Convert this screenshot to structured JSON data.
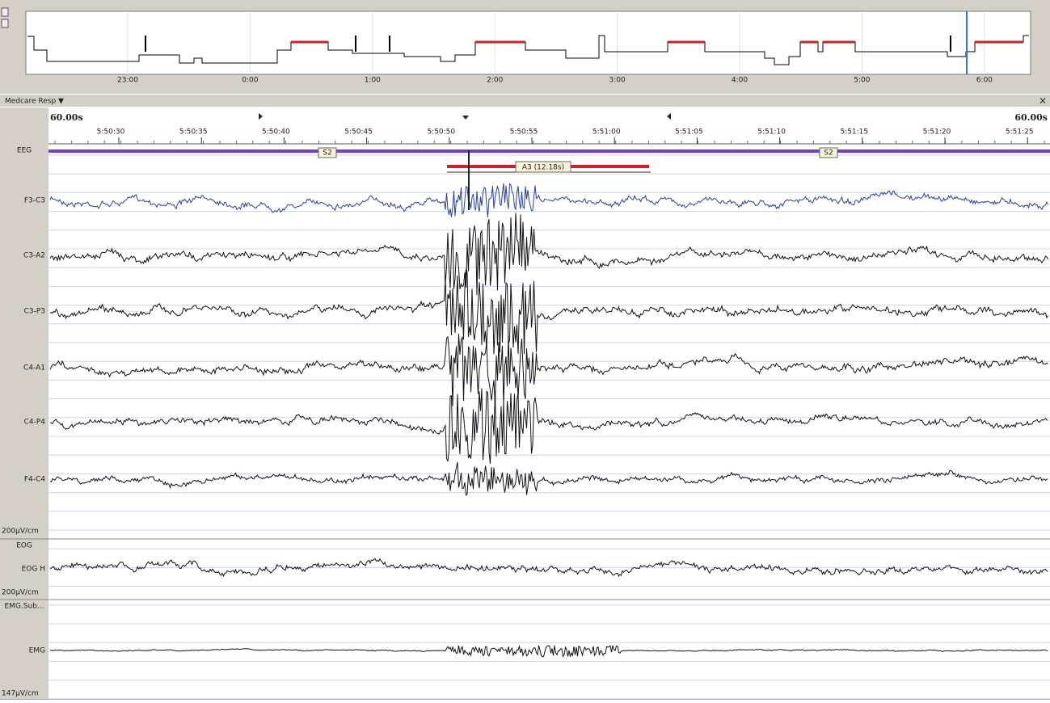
{
  "hypnogram": {
    "hour_labels": [
      "23:00",
      "0:00",
      "1:00",
      "2:00",
      "3:00",
      "4:00",
      "5:00",
      "6:00"
    ]
  },
  "toolbar": {
    "title": "Medcare Resp ▼",
    "close": "×"
  },
  "ruler": {
    "left": "60.00s",
    "right": "60.00s",
    "times": [
      "5:50:30",
      "5:50:35",
      "5:50:40",
      "5:50:45",
      "5:50:50",
      "5:50:55",
      "5:51:00",
      "5:51:05",
      "5:51:10",
      "5:51:15",
      "5:51:20",
      "5:51:25"
    ]
  },
  "groups": [
    {
      "label": "EEG",
      "channels": [
        "F3-C3",
        "C3-A2",
        "C3-P3",
        "C4-A1",
        "C4-P4",
        "F4-C4"
      ],
      "scale": "200µV/cm"
    },
    {
      "label": "EOG",
      "channels": [
        "EOG H"
      ],
      "scale": "200µV/cm"
    },
    {
      "label": "EMG.Sub...",
      "channels": [
        "EMG"
      ],
      "scale": "147µV/cm"
    }
  ],
  "annotations": {
    "stages": [
      "S2",
      "S2"
    ],
    "arousal": "A3 (12.18s)"
  }
}
